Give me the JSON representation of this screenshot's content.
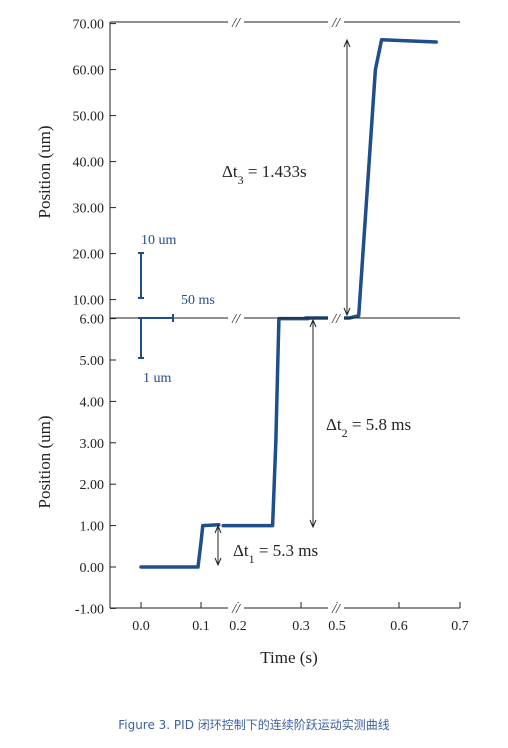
{
  "caption": "Figure 3. PID 闭环控制下的连续阶跃运动实测曲线",
  "chart_data": {
    "type": "line",
    "colors": {
      "series": "#1f4e8c",
      "axis": "#222222",
      "scalebar": "#1f4e8c"
    },
    "x_axis": {
      "title": "Time (s)",
      "tick_labels": [
        "0.0",
        "0.1",
        "0.2",
        "0.3",
        "0.5",
        "0.6",
        "0.7"
      ],
      "tick_values": [
        0.0,
        0.1,
        0.2,
        0.3,
        0.5,
        0.6,
        0.7
      ],
      "breaks": [
        "//",
        "//",
        "//",
        "//"
      ]
    },
    "top_panel": {
      "ylabel": "Position (um)",
      "ylim": [
        6.0,
        70.0
      ],
      "tick_labels": [
        "10.00",
        "20.00",
        "30.00",
        "40.00",
        "50.00",
        "60.00",
        "70.00"
      ],
      "tick_values": [
        10,
        20,
        30,
        40,
        50,
        60,
        70
      ],
      "series": [
        {
          "x": [
            0.325,
            0.52,
            0.535,
            0.562,
            0.572,
            0.66
          ],
          "y": [
            6.0,
            6.0,
            6.5,
            60.0,
            66.5,
            66.0
          ]
        }
      ]
    },
    "bottom_panel": {
      "ylabel": "Position (um)",
      "ylim": [
        -1.0,
        6.0
      ],
      "tick_labels": [
        "-1.00",
        "0.00",
        "1.00",
        "2.00",
        "3.00",
        "4.00",
        "5.00",
        "6.00"
      ],
      "tick_values": [
        -1,
        0,
        1,
        2,
        3,
        4,
        5,
        6
      ],
      "series": [
        {
          "x": [
            0.0,
            0.095,
            0.1,
            0.105,
            0.148
          ],
          "y": [
            0.0,
            0.0,
            0.6,
            1.0,
            1.02
          ]
        },
        {
          "x": [
            0.16,
            0.255,
            0.26,
            0.265,
            0.34
          ],
          "y": [
            1.0,
            1.0,
            3.0,
            6.0,
            6.0
          ]
        }
      ]
    },
    "annotations": [
      {
        "label": "Δt",
        "sub": "1",
        "value": "= 5.3 ms"
      },
      {
        "label": "Δt",
        "sub": "2",
        "value": "= 5.8 ms"
      },
      {
        "label": "Δt",
        "sub": "3",
        "value": "= 1.433s"
      }
    ],
    "scale_bars": {
      "vertical_top": "10 um",
      "horizontal": "50 ms",
      "vertical_bottom": "1 um"
    }
  }
}
